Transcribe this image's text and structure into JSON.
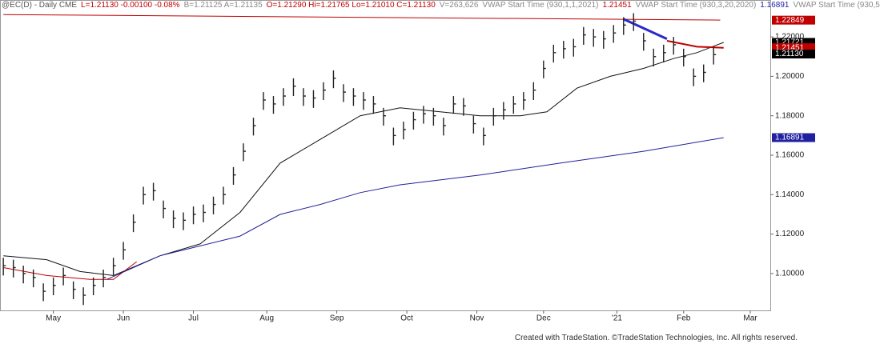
{
  "header": [
    {
      "text": "@EC(D) - Daily  CME",
      "color": "#555555"
    },
    {
      "text": "L=1.21130  -0.00100  -0.08%",
      "color": "#c00000"
    },
    {
      "text": "B=1.21125  A=1.21135",
      "color": "#888888"
    },
    {
      "text": "O=1.21290  Hi=1.21765  Lo=1.21010  C=1.21130",
      "color": "#c00000"
    },
    {
      "text": "V=263,626",
      "color": "#888888"
    },
    {
      "text": "VWAP Start Time (930,1,1,2021)",
      "color": "#888888"
    },
    {
      "text": "1.21451",
      "color": "#c00000"
    },
    {
      "text": "VWAP Start Time (930,3,20,2020)",
      "color": "#888888"
    },
    {
      "text": "1.16891",
      "color": "#2020a0"
    },
    {
      "text": "VWAP Start Time (930,5",
      "color": "#888888"
    }
  ],
  "footer": "Created with TradeStation. ©TradeStation Technologies, Inc. All rights reserved.",
  "chart_data": {
    "type": "ohlc",
    "x": [
      0,
      3,
      6,
      9,
      12,
      15,
      18,
      21,
      24,
      27,
      30,
      33,
      36,
      39,
      42,
      45,
      48,
      51,
      54,
      57,
      60,
      63,
      66,
      69,
      72,
      75,
      78,
      81,
      84,
      87,
      90,
      93,
      96,
      99,
      102,
      105,
      108,
      111,
      114,
      117,
      120,
      123,
      126,
      129,
      132,
      135,
      138,
      141,
      144,
      147,
      150,
      153,
      156,
      159,
      162,
      165,
      168,
      171,
      174,
      177,
      180,
      183,
      186,
      189,
      192,
      195,
      198,
      201,
      204,
      207,
      210,
      213
    ],
    "high": [
      1.108,
      1.107,
      1.104,
      1.102,
      1.095,
      1.098,
      1.103,
      1.096,
      1.093,
      1.098,
      1.102,
      1.108,
      1.116,
      1.13,
      1.144,
      1.146,
      1.137,
      1.132,
      1.131,
      1.134,
      1.135,
      1.139,
      1.144,
      1.154,
      1.166,
      1.179,
      1.192,
      1.19,
      1.194,
      1.199,
      1.194,
      1.193,
      1.197,
      1.203,
      1.196,
      1.194,
      1.192,
      1.19,
      1.184,
      1.174,
      1.177,
      1.182,
      1.185,
      1.184,
      1.179,
      1.19,
      1.189,
      1.18,
      1.174,
      1.184,
      1.187,
      1.19,
      1.192,
      1.197,
      1.208,
      1.216,
      1.218,
      1.219,
      1.225,
      1.224,
      1.223,
      1.226,
      1.23,
      1.232,
      1.222,
      1.214,
      1.216,
      1.22,
      1.214,
      1.204,
      1.206,
      1.215
    ],
    "low": [
      1.099,
      1.098,
      1.095,
      1.093,
      1.086,
      1.089,
      1.094,
      1.087,
      1.084,
      1.089,
      1.093,
      1.099,
      1.107,
      1.121,
      1.135,
      1.137,
      1.128,
      1.123,
      1.122,
      1.125,
      1.126,
      1.13,
      1.135,
      1.145,
      1.157,
      1.17,
      1.183,
      1.181,
      1.185,
      1.19,
      1.185,
      1.184,
      1.188,
      1.194,
      1.187,
      1.185,
      1.183,
      1.181,
      1.175,
      1.165,
      1.168,
      1.173,
      1.176,
      1.175,
      1.17,
      1.181,
      1.18,
      1.171,
      1.165,
      1.175,
      1.178,
      1.181,
      1.183,
      1.188,
      1.199,
      1.207,
      1.209,
      1.21,
      1.216,
      1.215,
      1.214,
      1.217,
      1.221,
      1.223,
      1.213,
      1.205,
      1.207,
      1.211,
      1.205,
      1.195,
      1.197,
      1.206
    ],
    "close": [
      1.104,
      1.103,
      1.1,
      1.098,
      1.091,
      1.094,
      1.099,
      1.092,
      1.089,
      1.094,
      1.098,
      1.104,
      1.112,
      1.126,
      1.14,
      1.142,
      1.133,
      1.128,
      1.127,
      1.13,
      1.131,
      1.135,
      1.14,
      1.15,
      1.162,
      1.175,
      1.188,
      1.186,
      1.19,
      1.195,
      1.19,
      1.189,
      1.193,
      1.199,
      1.192,
      1.19,
      1.188,
      1.186,
      1.18,
      1.17,
      1.173,
      1.178,
      1.181,
      1.18,
      1.175,
      1.186,
      1.185,
      1.176,
      1.17,
      1.18,
      1.183,
      1.186,
      1.188,
      1.193,
      1.204,
      1.212,
      1.214,
      1.215,
      1.221,
      1.22,
      1.219,
      1.222,
      1.226,
      1.228,
      1.218,
      1.21,
      1.212,
      1.216,
      1.21,
      1.2,
      1.202,
      1.211
    ],
    "bar_color": "#222222",
    "lines": [
      {
        "color": "#c00000",
        "width": 1,
        "x": [
          0,
          215
        ],
        "values": [
          1.2313,
          1.2285
        ]
      },
      {
        "color": "#111111",
        "width": 1,
        "x": [
          0,
          13,
          23,
          33,
          47,
          59,
          71,
          83,
          95,
          107,
          119,
          131,
          143,
          155,
          163,
          172,
          182,
          192,
          201,
          208,
          216
        ],
        "values": [
          1.109,
          1.107,
          1.101,
          1.099,
          1.109,
          1.115,
          1.131,
          1.156,
          1.168,
          1.18,
          1.184,
          1.182,
          1.18,
          1.18,
          1.182,
          1.194,
          1.2,
          1.204,
          1.209,
          1.212,
          1.2172
        ]
      },
      {
        "color": "#c00000",
        "width": 1,
        "x": [
          0,
          13,
          26,
          33,
          40
        ],
        "values": [
          1.103,
          1.099,
          1.097,
          1.097,
          1.106
        ]
      },
      {
        "color": "#20209a",
        "width": 1,
        "x": [
          31,
          47,
          59,
          71,
          83,
          95,
          107,
          119,
          143,
          167,
          192,
          216
        ],
        "values": [
          1.097,
          1.109,
          1.114,
          1.119,
          1.13,
          1.135,
          1.141,
          1.145,
          1.15,
          1.156,
          1.162,
          1.1689
        ]
      },
      {
        "color": "#2a2ac8",
        "width": 3,
        "x": [
          186,
          199
        ],
        "values": [
          1.229,
          1.219
        ]
      },
      {
        "color": "#c00000",
        "width": 2,
        "x": [
          199,
          208,
          216
        ],
        "values": [
          1.218,
          1.215,
          1.2145
        ]
      }
    ],
    "xlim": [
      -1,
      230
    ],
    "xticks": [
      {
        "value": 15,
        "label": "May"
      },
      {
        "value": 36,
        "label": "Jun"
      },
      {
        "value": 57,
        "label": "Jul"
      },
      {
        "value": 79,
        "label": "Aug"
      },
      {
        "value": 100,
        "label": "Sep"
      },
      {
        "value": 121,
        "label": "Oct"
      },
      {
        "value": 142,
        "label": "Nov"
      },
      {
        "value": 162,
        "label": "Dec"
      },
      {
        "value": 184,
        "label": "'21"
      },
      {
        "value": 204,
        "label": "Feb"
      },
      {
        "value": 224,
        "label": "Mar"
      }
    ],
    "ylim": [
      1.0813,
      1.2387
    ],
    "yticks": [
      {
        "value": 1.1,
        "label": "1.10000"
      },
      {
        "value": 1.12,
        "label": "1.12000"
      },
      {
        "value": 1.14,
        "label": "1.14000"
      },
      {
        "value": 1.16,
        "label": "1.16000"
      },
      {
        "value": 1.18,
        "label": "1.18000"
      },
      {
        "value": 1.2,
        "label": "1.20000"
      },
      {
        "value": 1.22,
        "label": "1.22000"
      }
    ],
    "price_labels": [
      {
        "value": 1.22849,
        "label": "1.22849",
        "color": "#c00000"
      },
      {
        "value": 1.21721,
        "label": "1.21721",
        "color": "#000000"
      },
      {
        "value": 1.21451,
        "label": "1.21451",
        "color": "#c00000"
      },
      {
        "value": 1.2113,
        "label": "1.21130",
        "color": "#000000"
      },
      {
        "value": 1.16891,
        "label": "1.16891",
        "color": "#2020a0"
      }
    ]
  }
}
